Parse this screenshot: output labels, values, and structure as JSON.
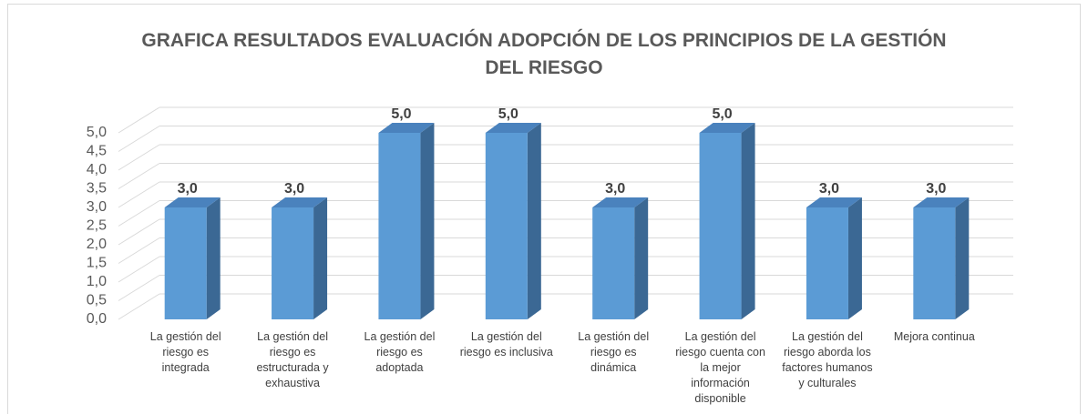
{
  "chart_data": {
    "type": "bar",
    "title": "GRAFICA RESULTADOS EVALUACIÓN ADOPCIÓN DE LOS PRINCIPIOS DE LA GESTIÓN DEL RIESGO",
    "categories": [
      "La gestión del riesgo es integrada",
      "La gestión del riesgo es estructurada y exhaustiva",
      "La gestión del riesgo es adoptada",
      "La gestión del riesgo es inclusiva",
      "La gestión del riesgo es dinámica",
      "La gestión del riesgo cuenta con la mejor información disponible",
      "La gestión del riesgo aborda los factores humanos y culturales",
      "Mejora continua"
    ],
    "values": [
      3,
      3,
      5,
      5,
      3,
      5,
      3,
      3
    ],
    "value_labels": [
      "3,0",
      "3,0",
      "5,0",
      "5,0",
      "3,0",
      "5,0",
      "3,0",
      "3,0"
    ],
    "color": "#5b9bd5",
    "ylim": [
      0,
      5
    ],
    "yticks": [
      {
        "value": 0,
        "label": "0,0"
      },
      {
        "value": 0.5,
        "label": "0,5"
      },
      {
        "value": 1,
        "label": "1,0"
      },
      {
        "value": 1.5,
        "label": "1,5"
      },
      {
        "value": 2,
        "label": "2,0"
      },
      {
        "value": 2.5,
        "label": "2,5"
      },
      {
        "value": 3,
        "label": "3,0"
      },
      {
        "value": 3.5,
        "label": "3,5"
      },
      {
        "value": 4,
        "label": "4,0"
      },
      {
        "value": 4.5,
        "label": "4,5"
      },
      {
        "value": 5,
        "label": "5,0"
      }
    ],
    "grid": true
  }
}
